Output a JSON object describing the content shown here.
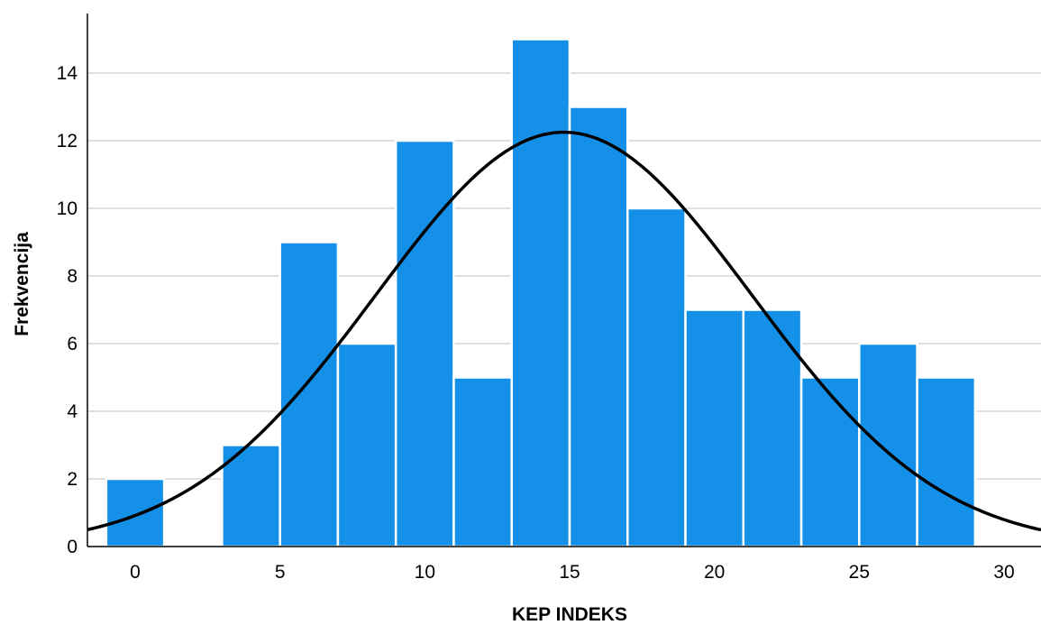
{
  "chart_data": {
    "type": "bar",
    "subtype": "histogram",
    "xlabel": "KEP INDEKS",
    "ylabel": "Frekvencija",
    "xlim": [
      -2,
      31
    ],
    "ylim": [
      0,
      15.5
    ],
    "xticks": [
      "0",
      "5",
      "10",
      "15",
      "20",
      "25",
      "30"
    ],
    "yticks": [
      "0",
      "2",
      "4",
      "6",
      "8",
      "10",
      "12",
      "14"
    ],
    "grid": "horizontal",
    "bin_width": 2,
    "bins": [
      {
        "start": -1,
        "end": 1,
        "value": 2
      },
      {
        "start": 1,
        "end": 3,
        "value": 0
      },
      {
        "start": 3,
        "end": 5,
        "value": 3
      },
      {
        "start": 5,
        "end": 7,
        "value": 9
      },
      {
        "start": 7,
        "end": 9,
        "value": 6
      },
      {
        "start": 9,
        "end": 11,
        "value": 12
      },
      {
        "start": 11,
        "end": 13,
        "value": 5
      },
      {
        "start": 13,
        "end": 15,
        "value": 15
      },
      {
        "start": 15,
        "end": 17,
        "value": 13
      },
      {
        "start": 17,
        "end": 19,
        "value": 10
      },
      {
        "start": 19,
        "end": 21,
        "value": 7
      },
      {
        "start": 21,
        "end": 23,
        "value": 7
      },
      {
        "start": 23,
        "end": 25,
        "value": 5
      },
      {
        "start": 25,
        "end": 27,
        "value": 6
      },
      {
        "start": 27,
        "end": 29,
        "value": 5
      }
    ],
    "normal_curve": {
      "mean": 14.8,
      "sd": 6.5,
      "peak": 12.25
    },
    "colors": {
      "bar": "#1490e8",
      "bar_edge": "#ffffff",
      "curve": "#000000",
      "grid": "#cccccc",
      "axis": "#000000"
    }
  }
}
